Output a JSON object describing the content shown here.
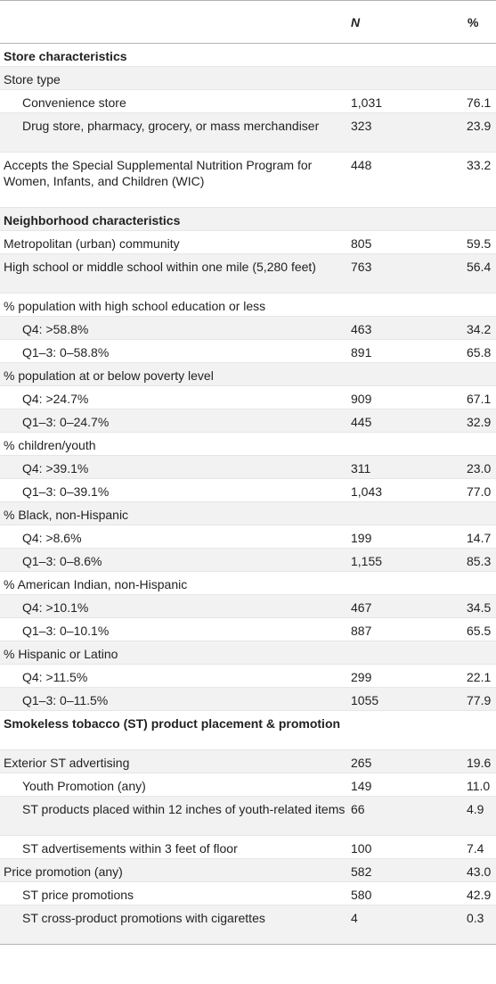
{
  "header": {
    "col_n": "N",
    "col_pct": "%"
  },
  "rows": [
    {
      "label": "Store characteristics",
      "n": "",
      "pct": "",
      "level": 1
    },
    {
      "label": "Store type",
      "n": "",
      "pct": "",
      "level": 2
    },
    {
      "label": "Convenience store",
      "n": "1,031",
      "pct": "76.1",
      "level": 3
    },
    {
      "label": "Drug store, pharmacy, grocery, or mass merchandiser",
      "n": "323",
      "pct": "23.9",
      "level": 3
    },
    {
      "label": "Accepts the Special Supplemental Nutrition Program for Women, Infants, and Children (WIC)",
      "n": "448",
      "pct": "33.2",
      "level": 2
    },
    {
      "label": "Neighborhood characteristics",
      "n": "",
      "pct": "",
      "level": 1
    },
    {
      "label": "Metropolitan (urban) community",
      "n": "805",
      "pct": "59.5",
      "level": 2
    },
    {
      "label": "High school or middle school within one mile (5,280 feet)",
      "n": "763",
      "pct": "56.4",
      "level": 2
    },
    {
      "label": "% population with high school education or less",
      "n": "",
      "pct": "",
      "level": 2
    },
    {
      "label": "Q4: >58.8%",
      "n": "463",
      "pct": "34.2",
      "level": 3
    },
    {
      "label": "Q1–3: 0–58.8%",
      "n": "891",
      "pct": "65.8",
      "level": 3
    },
    {
      "label": "% population at or below poverty level",
      "n": "",
      "pct": "",
      "level": 2
    },
    {
      "label": "Q4: >24.7%",
      "n": "909",
      "pct": "67.1",
      "level": 3
    },
    {
      "label": "Q1–3: 0–24.7%",
      "n": "445",
      "pct": "32.9",
      "level": 3
    },
    {
      "label": "% children/youth",
      "n": "",
      "pct": "",
      "level": 2
    },
    {
      "label": "Q4: >39.1%",
      "n": "311",
      "pct": "23.0",
      "level": 3
    },
    {
      "label": "Q1–3: 0–39.1%",
      "n": "1,043",
      "pct": "77.0",
      "level": 3
    },
    {
      "label": "% Black, non-Hispanic",
      "n": "",
      "pct": "",
      "level": 2
    },
    {
      "label": "Q4: >8.6%",
      "n": "199",
      "pct": "14.7",
      "level": 3
    },
    {
      "label": "Q1–3: 0–8.6%",
      "n": "1,155",
      "pct": "85.3",
      "level": 3
    },
    {
      "label": "% American Indian, non-Hispanic",
      "n": "",
      "pct": "",
      "level": 2
    },
    {
      "label": "Q4: >10.1%",
      "n": "467",
      "pct": "34.5",
      "level": 3
    },
    {
      "label": "Q1–3: 0–10.1%",
      "n": "887",
      "pct": "65.5",
      "level": 3
    },
    {
      "label": "% Hispanic or Latino",
      "n": "",
      "pct": "",
      "level": 2
    },
    {
      "label": "Q4: >11.5%",
      "n": "299",
      "pct": "22.1",
      "level": 3
    },
    {
      "label": "Q1–3: 0–11.5%",
      "n": "1055",
      "pct": "77.9",
      "level": 3
    },
    {
      "label": "Smokeless tobacco (ST) product placement & promotion",
      "n": "",
      "pct": "",
      "level": 1
    },
    {
      "label": "Exterior ST advertising",
      "n": "265",
      "pct": "19.6",
      "level": 2
    },
    {
      "label": "Youth Promotion (any)",
      "n": "149",
      "pct": "11.0",
      "level": 3
    },
    {
      "label": "ST products placed within 12 inches of youth-related items",
      "n": "66",
      "pct": "4.9",
      "level": 3
    },
    {
      "label": "ST advertisements within 3 feet of floor",
      "n": "100",
      "pct": "7.4",
      "level": 3
    },
    {
      "label": "Price promotion (any)",
      "n": "582",
      "pct": "43.0",
      "level": 2
    },
    {
      "label": "ST price promotions",
      "n": "580",
      "pct": "42.9",
      "level": 3
    },
    {
      "label": "ST cross-product promotions with cigarettes",
      "n": "4",
      "pct": "0.3",
      "level": 3
    }
  ]
}
